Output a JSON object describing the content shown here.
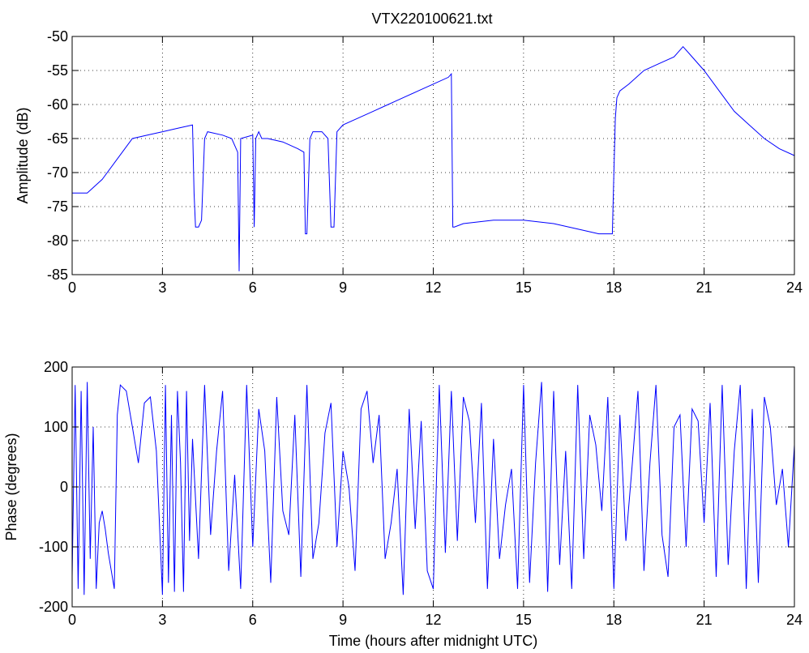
{
  "chart_data": [
    {
      "type": "line",
      "title": "VTX220100621.txt",
      "xlabel": "",
      "ylabel": "Amplitude (dB)",
      "xlim": [
        0,
        24
      ],
      "ylim": [
        -85,
        -50
      ],
      "xticks": [
        "0",
        "3",
        "6",
        "9",
        "12",
        "15",
        "18",
        "21",
        "24"
      ],
      "yticks": [
        "-85",
        "-80",
        "-75",
        "-70",
        "-65",
        "-60",
        "-55",
        "-50"
      ],
      "grid": true,
      "color": "#0000ff",
      "series": [
        {
          "x": [
            0,
            0.5,
            1.0,
            1.5,
            2.0,
            2.5,
            3.0,
            3.5,
            4.0,
            4.05,
            4.1,
            4.2,
            4.3,
            4.4,
            4.5,
            5.0,
            5.3,
            5.5,
            5.55,
            5.6,
            6.0,
            6.05,
            6.1,
            6.2,
            6.3,
            6.4,
            6.5,
            7.0,
            7.5,
            7.7,
            7.75,
            7.8,
            7.9,
            8.0,
            8.3,
            8.5,
            8.6,
            8.7,
            8.8,
            9.0,
            9.5,
            10.0,
            10.5,
            11.0,
            11.5,
            12.0,
            12.5,
            12.6,
            12.65,
            12.7,
            13.0,
            14.0,
            15.0,
            16.0,
            17.0,
            17.5,
            17.95,
            18.0,
            18.05,
            18.1,
            18.2,
            18.5,
            19.0,
            19.5,
            20.0,
            20.3,
            20.5,
            21.0,
            21.5,
            22.0,
            22.5,
            23.0,
            23.5,
            24.0
          ],
          "values": [
            -73,
            -73,
            -71,
            -68,
            -65,
            -64.5,
            -64,
            -63.5,
            -63,
            -73,
            -78,
            -78,
            -77,
            -65,
            -64,
            -64.5,
            -65,
            -67,
            -84.5,
            -65,
            -64.5,
            -78,
            -65,
            -64,
            -65,
            -65,
            -65,
            -65.5,
            -66.5,
            -67,
            -79,
            -79,
            -65,
            -64,
            -64,
            -65,
            -78,
            -78,
            -64,
            -63,
            -62,
            -61,
            -60,
            -59,
            -58,
            -57,
            -56,
            -55.5,
            -78,
            -78,
            -77.5,
            -77,
            -77,
            -77.5,
            -78.5,
            -79,
            -79,
            -70,
            -62,
            -59,
            -58,
            -57,
            -55,
            -54,
            -53,
            -51.5,
            -52.5,
            -55,
            -58,
            -61,
            -63,
            -65,
            -66.5,
            -67.5
          ]
        }
      ]
    },
    {
      "type": "line",
      "title": "",
      "xlabel": "Time (hours after midnight UTC)",
      "ylabel": "Phase (degrees)",
      "xlim": [
        0,
        24
      ],
      "ylim": [
        -200,
        200
      ],
      "xticks": [
        "0",
        "3",
        "6",
        "9",
        "12",
        "15",
        "18",
        "21",
        "24"
      ],
      "yticks": [
        "-200",
        "-100",
        "0",
        "100",
        "200"
      ],
      "grid": true,
      "color": "#0000ff",
      "series": [
        {
          "x": [
            0,
            0.1,
            0.2,
            0.3,
            0.4,
            0.5,
            0.6,
            0.7,
            0.8,
            0.9,
            1.0,
            1.1,
            1.2,
            1.3,
            1.4,
            1.5,
            1.6,
            1.8,
            2.0,
            2.2,
            2.4,
            2.6,
            2.8,
            3.0,
            3.1,
            3.2,
            3.3,
            3.4,
            3.5,
            3.6,
            3.7,
            3.8,
            3.9,
            4.0,
            4.2,
            4.4,
            4.6,
            4.8,
            5.0,
            5.2,
            5.4,
            5.6,
            5.8,
            6.0,
            6.2,
            6.4,
            6.6,
            6.8,
            7.0,
            7.2,
            7.4,
            7.6,
            7.8,
            8.0,
            8.2,
            8.4,
            8.6,
            8.8,
            9.0,
            9.2,
            9.4,
            9.6,
            9.8,
            10.0,
            10.2,
            10.4,
            10.6,
            10.8,
            11.0,
            11.2,
            11.4,
            11.6,
            11.8,
            12.0,
            12.2,
            12.4,
            12.6,
            12.8,
            13.0,
            13.2,
            13.4,
            13.6,
            13.8,
            14.0,
            14.2,
            14.4,
            14.6,
            14.8,
            15.0,
            15.2,
            15.4,
            15.6,
            15.8,
            16.0,
            16.2,
            16.4,
            16.6,
            16.8,
            17.0,
            17.2,
            17.4,
            17.6,
            17.8,
            18.0,
            18.2,
            18.4,
            18.6,
            18.8,
            19.0,
            19.2,
            19.4,
            19.6,
            19.8,
            20.0,
            20.2,
            20.4,
            20.6,
            20.8,
            21.0,
            21.2,
            21.4,
            21.6,
            21.8,
            22.0,
            22.2,
            22.4,
            22.6,
            22.8,
            23.0,
            23.2,
            23.4,
            23.6,
            23.8,
            24.0
          ],
          "values": [
            -150,
            170,
            -170,
            160,
            -180,
            175,
            -120,
            100,
            -170,
            -60,
            -40,
            -70,
            -110,
            -140,
            -170,
            120,
            170,
            160,
            100,
            40,
            140,
            150,
            60,
            -180,
            170,
            -160,
            120,
            -175,
            160,
            40,
            -175,
            160,
            -90,
            80,
            -120,
            170,
            -80,
            60,
            160,
            -140,
            20,
            -170,
            170,
            -100,
            130,
            60,
            -160,
            150,
            -40,
            -80,
            120,
            -150,
            170,
            -120,
            -60,
            90,
            140,
            -100,
            60,
            0,
            -140,
            130,
            160,
            40,
            120,
            -120,
            -60,
            30,
            -180,
            130,
            -70,
            110,
            -140,
            -170,
            170,
            -110,
            160,
            -90,
            150,
            110,
            -60,
            140,
            -170,
            80,
            -120,
            -30,
            30,
            -170,
            170,
            -160,
            40,
            175,
            -175,
            160,
            -130,
            60,
            -170,
            170,
            -120,
            120,
            70,
            -40,
            150,
            -170,
            120,
            -90,
            30,
            160,
            -140,
            40,
            170,
            -80,
            -150,
            100,
            120,
            -100,
            130,
            110,
            -60,
            140,
            -150,
            170,
            -130,
            60,
            170,
            -170,
            130,
            -160,
            150,
            100,
            -30,
            30,
            -100,
            70
          ]
        }
      ]
    }
  ]
}
